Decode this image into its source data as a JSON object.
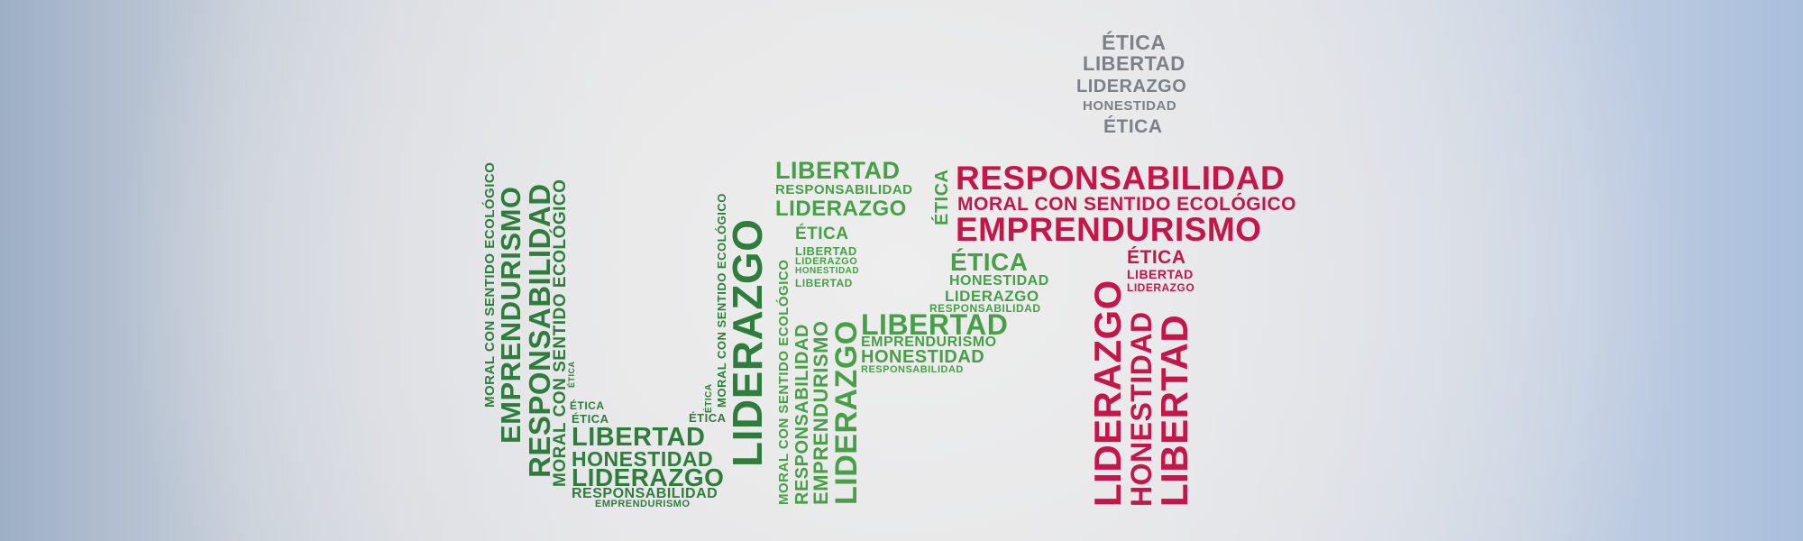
{
  "colors": {
    "dark_green": "#2f7d3d",
    "light_green": "#47a047",
    "red": "#c4164a",
    "gray": "#7c8088"
  },
  "words": {
    "etica": "ÉTICA",
    "libertad": "LIBERTAD",
    "liderazgo": "LIDERAZGO",
    "honestidad": "HONESTIDAD",
    "responsabilidad": "RESPONSABILIDAD",
    "emprendurismo": "EMPRENDURISMO",
    "moral": "MORAL CON SENTIDO ECOLÓGICO"
  }
}
